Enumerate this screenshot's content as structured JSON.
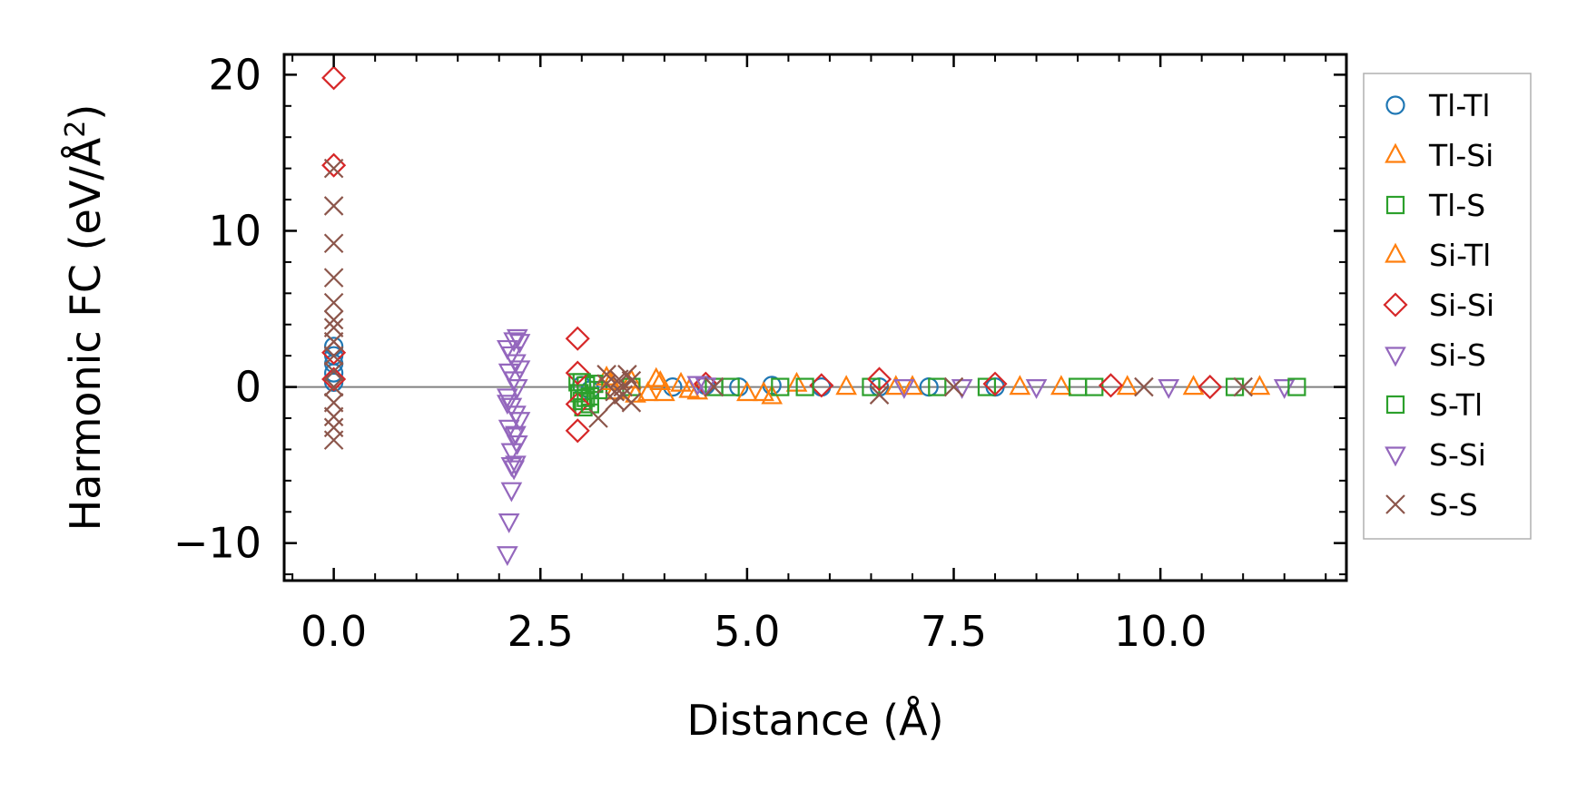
{
  "chart_data": {
    "type": "scatter",
    "title": "",
    "xlabel": "Distance (Å)",
    "ylabel": "Harmonic FC (eV/Å",
    "ylabel_sup": "2",
    "ylabel_close": ")",
    "xlim": [
      -0.6,
      12.25
    ],
    "ylim": [
      -12.4,
      21.3
    ],
    "xticks": [
      0.0,
      2.5,
      5.0,
      7.5,
      10.0
    ],
    "xtick_labels": [
      "0.0",
      "2.5",
      "5.0",
      "7.5",
      "10.0"
    ],
    "yticks": [
      -10,
      0,
      10,
      20
    ],
    "ytick_labels": [
      "−10",
      "0",
      "10",
      "20"
    ],
    "legend_position": "right, outside plot",
    "reference_line_y": 0,
    "series": [
      {
        "name": "Tl-Tl",
        "marker": "circle",
        "color": "#1f77b4",
        "x": [
          0.0,
          0.0,
          0.0,
          0.0,
          0.0,
          3.0,
          3.1,
          4.1,
          4.5,
          4.9,
          5.3,
          5.9,
          6.6,
          7.2,
          8.0
        ],
        "y": [
          2.6,
          2.0,
          1.5,
          0.9,
          0.3,
          0.1,
          -0.2,
          0.0,
          0.1,
          0.0,
          0.1,
          0.0,
          0.0,
          0.0,
          0.0
        ]
      },
      {
        "name": "Tl-Si",
        "marker": "triangle-up",
        "color": "#ff7f0e",
        "x": [
          3.3,
          3.4,
          3.6,
          3.8,
          3.9,
          4.0,
          4.2,
          4.4,
          5.0,
          5.3,
          5.6,
          6.2,
          7.0,
          8.3,
          9.6,
          11.2
        ],
        "y": [
          0.6,
          -0.3,
          0.4,
          -0.4,
          0.5,
          -0.4,
          0.2,
          -0.3,
          -0.4,
          -0.6,
          0.2,
          0.0,
          0.0,
          0.0,
          0.0,
          0.0
        ]
      },
      {
        "name": "Tl-S",
        "marker": "square",
        "color": "#2ca02c",
        "x": [
          2.95,
          2.97,
          3.0,
          3.02,
          3.05,
          3.1,
          3.15,
          3.2,
          3.6,
          4.8,
          5.4,
          6.5,
          7.9,
          9.2,
          10.9
        ],
        "y": [
          0.3,
          -0.4,
          -0.9,
          -1.3,
          0.1,
          -0.6,
          0.2,
          -0.2,
          0.0,
          0.0,
          0.0,
          0.0,
          0.0,
          0.0,
          0.0
        ]
      },
      {
        "name": "Si-Tl",
        "marker": "triangle-up",
        "color": "#ff7f0e",
        "x": [
          3.35,
          3.65,
          3.95,
          4.3,
          5.2,
          6.8,
          8.8,
          10.4
        ],
        "y": [
          0.3,
          -0.5,
          0.3,
          -0.2,
          -0.4,
          0.0,
          0.0,
          0.0
        ]
      },
      {
        "name": "Si-Si",
        "marker": "diamond",
        "color": "#d62728",
        "x": [
          0.0,
          0.0,
          0.0,
          0.0,
          2.95,
          2.95,
          2.95,
          2.95,
          4.5,
          5.9,
          6.6,
          8.0,
          9.4,
          10.6
        ],
        "y": [
          19.8,
          14.2,
          2.2,
          0.5,
          3.1,
          0.9,
          -1.1,
          -2.8,
          0.2,
          0.1,
          0.5,
          0.2,
          0.1,
          0.0
        ]
      },
      {
        "name": "Si-S",
        "marker": "triangle-down",
        "color": "#9467bd",
        "x": [
          2.1,
          2.12,
          2.15,
          2.18,
          2.2,
          2.22,
          2.25,
          2.1,
          2.15,
          2.2,
          2.12,
          2.18,
          2.22,
          2.1,
          2.15,
          2.2,
          2.25,
          2.12,
          2.18,
          2.22,
          2.15,
          4.4,
          6.9,
          8.5,
          11.5
        ],
        "y": [
          -10.7,
          -8.6,
          -6.6,
          -5.2,
          -4.9,
          3.2,
          2.9,
          2.5,
          2.1,
          1.6,
          1.0,
          0.5,
          0.0,
          -0.6,
          -1.2,
          -1.7,
          -2.1,
          -2.6,
          -3.1,
          -3.6,
          -4.1,
          0.2,
          0.0,
          0.0,
          0.0
        ]
      },
      {
        "name": "S-Tl",
        "marker": "square",
        "color": "#2ca02c",
        "x": [
          3.0,
          3.05,
          3.1,
          4.6,
          5.7,
          7.3,
          9.0,
          11.65
        ],
        "y": [
          0.3,
          -0.7,
          -1.1,
          0.0,
          0.0,
          0.0,
          0.0,
          0.0
        ]
      },
      {
        "name": "S-Si",
        "marker": "triangle-down",
        "color": "#9467bd",
        "x": [
          2.15,
          2.2,
          2.1,
          2.25,
          2.18,
          4.5,
          7.6,
          10.1
        ],
        "y": [
          -5.0,
          -3.0,
          -1.0,
          1.2,
          3.0,
          0.1,
          0.0,
          0.0
        ]
      },
      {
        "name": "S-S",
        "marker": "x",
        "color": "#8c564b",
        "x": [
          0.0,
          0.0,
          0.0,
          0.0,
          0.0,
          0.0,
          0.0,
          0.0,
          0.0,
          0.0,
          0.0,
          0.0,
          0.0,
          0.0,
          0.0,
          3.2,
          3.3,
          3.4,
          3.45,
          3.5,
          3.55,
          3.6,
          3.3,
          3.5,
          3.6,
          3.4,
          4.6,
          6.6,
          7.5,
          9.8,
          11.0
        ],
        "y": [
          14.0,
          11.6,
          9.2,
          7.0,
          5.4,
          4.3,
          3.8,
          2.9,
          2.0,
          1.0,
          0.0,
          -1.0,
          -1.9,
          -2.6,
          -3.4,
          -2.0,
          0.8,
          -0.9,
          0.5,
          -0.5,
          0.8,
          -1.0,
          0.2,
          0.0,
          0.4,
          -0.3,
          0.0,
          -0.5,
          0.0,
          0.0,
          0.0
        ]
      }
    ]
  }
}
